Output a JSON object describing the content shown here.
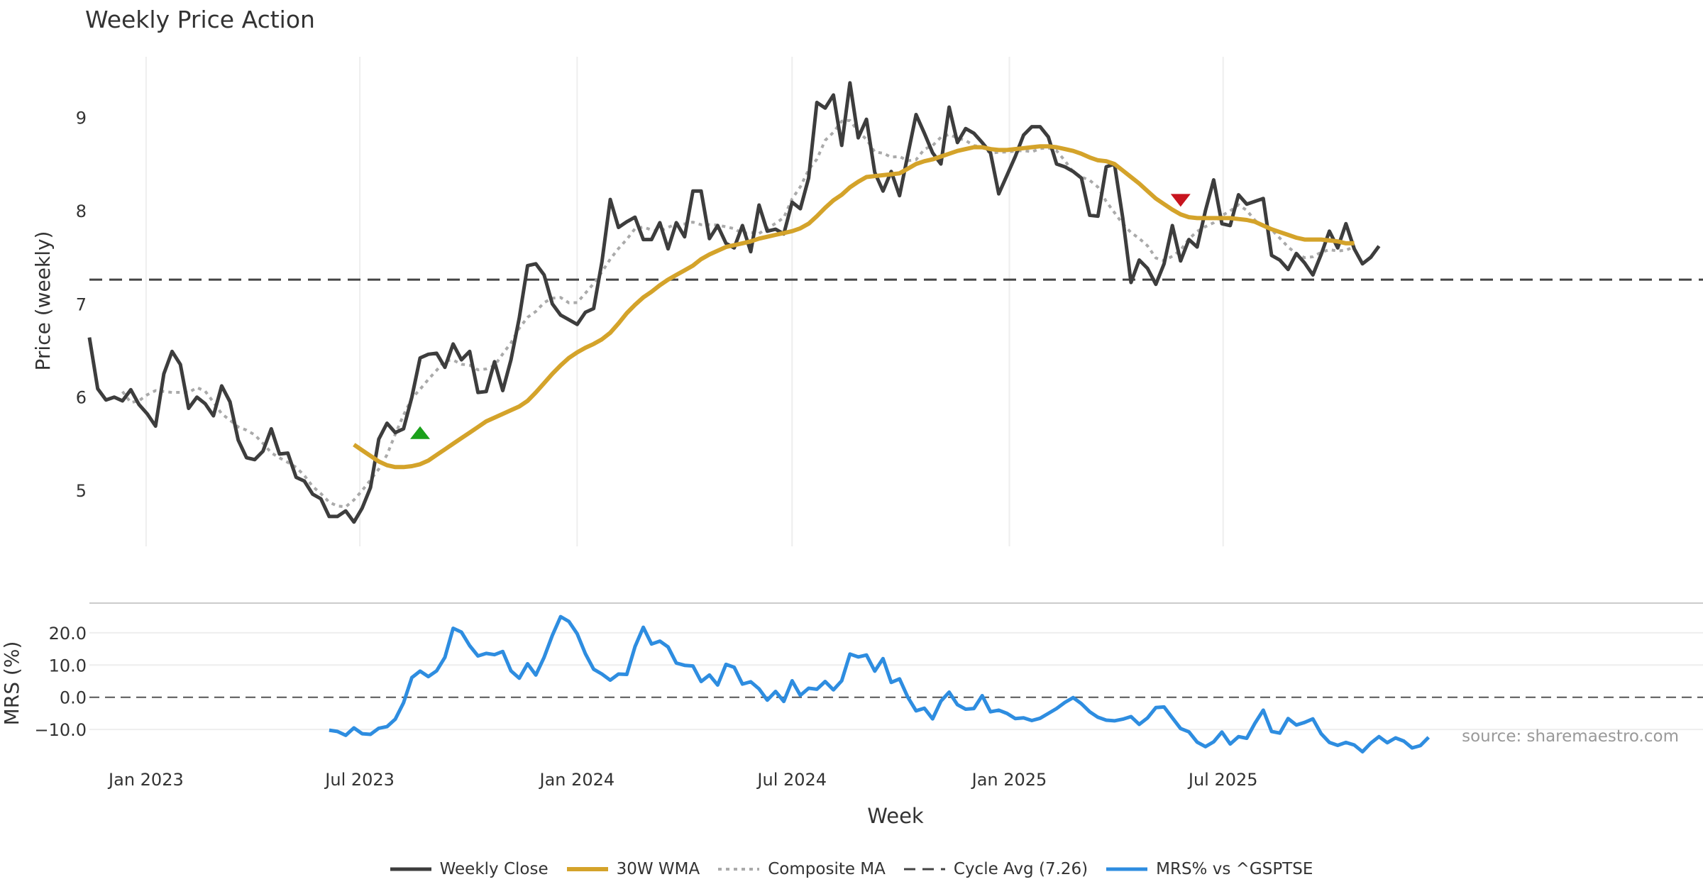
{
  "chart_data": {
    "type": "line",
    "title": "Weekly Price Action",
    "xlabel": "Week",
    "x_ticks": [
      "Jan 2023",
      "Jul 2023",
      "Jan 2024",
      "Jul 2024",
      "Jan 2025",
      "Jul 2025"
    ],
    "source": "source: sharemaestro.com",
    "colors": {
      "close": "#3d3d3d",
      "wma": "#d4a32a",
      "composite": "#aaaaaa",
      "cycle": "#444444",
      "mrs": "#2e8de0",
      "buy": "#1aa01a",
      "sell": "#c8141e"
    },
    "price_panel": {
      "ylabel": "Price (weekly)",
      "ylim": [
        4.4,
        9.65
      ],
      "yticks": [
        "5",
        "6",
        "7",
        "8",
        "9"
      ],
      "cycle_avg": 7.26,
      "start_date": "2022-11-14",
      "close": [
        6.64,
        6.09,
        5.97,
        6.0,
        5.96,
        6.08,
        5.92,
        5.82,
        5.69,
        6.25,
        6.49,
        6.35,
        5.88,
        6.0,
        5.93,
        5.8,
        6.12,
        5.95,
        5.54,
        5.35,
        5.33,
        5.42,
        5.66,
        5.39,
        5.4,
        5.14,
        5.1,
        4.96,
        4.91,
        4.72,
        4.72,
        4.78,
        4.66,
        4.81,
        5.03,
        5.55,
        5.72,
        5.62,
        5.66,
        6.0,
        6.42,
        6.46,
        6.47,
        6.32,
        6.57,
        6.4,
        6.49,
        6.05,
        6.06,
        6.38,
        6.07,
        6.4,
        6.85,
        7.41,
        7.43,
        7.31,
        7.0,
        6.88,
        6.83,
        6.78,
        6.91,
        6.95,
        7.45,
        8.12,
        7.82,
        7.88,
        7.93,
        7.69,
        7.69,
        7.87,
        7.59,
        7.87,
        7.72,
        8.21,
        8.21,
        7.7,
        7.84,
        7.65,
        7.6,
        7.84,
        7.56,
        8.06,
        7.78,
        7.8,
        7.75,
        8.09,
        8.02,
        8.35,
        9.16,
        9.1,
        9.24,
        8.7,
        9.37,
        8.78,
        8.98,
        8.41,
        8.21,
        8.42,
        8.16,
        8.6,
        9.03,
        8.83,
        8.62,
        8.5,
        9.11,
        8.73,
        8.88,
        8.83,
        8.73,
        8.62,
        8.18,
        8.38,
        8.58,
        8.81,
        8.9,
        8.9,
        8.79,
        8.5,
        8.47,
        8.42,
        8.35,
        7.95,
        7.94,
        8.47,
        8.5,
        7.92,
        7.23,
        7.47,
        7.38,
        7.21,
        7.43,
        7.84,
        7.46,
        7.69,
        7.61,
        8.0,
        8.33,
        7.86,
        7.84,
        8.17,
        8.07,
        8.1,
        8.13,
        7.52,
        7.47,
        7.37,
        7.54,
        7.44,
        7.31,
        7.53,
        7.78,
        7.6,
        7.86,
        7.59,
        7.43,
        7.5,
        7.62
      ],
      "wma_start": 32,
      "wma": [
        5.49,
        5.43,
        5.37,
        5.31,
        5.27,
        5.25,
        5.25,
        5.26,
        5.28,
        5.32,
        5.38,
        5.44,
        5.5,
        5.56,
        5.62,
        5.68,
        5.74,
        5.78,
        5.82,
        5.86,
        5.9,
        5.96,
        6.05,
        6.15,
        6.25,
        6.34,
        6.42,
        6.48,
        6.53,
        6.57,
        6.62,
        6.69,
        6.79,
        6.9,
        6.99,
        7.07,
        7.13,
        7.2,
        7.26,
        7.31,
        7.36,
        7.41,
        7.48,
        7.53,
        7.57,
        7.61,
        7.63,
        7.65,
        7.67,
        7.7,
        7.72,
        7.74,
        7.76,
        7.78,
        7.81,
        7.86,
        7.94,
        8.03,
        8.11,
        8.17,
        8.25,
        8.31,
        8.36,
        8.37,
        8.38,
        8.39,
        8.4,
        8.45,
        8.5,
        8.53,
        8.55,
        8.58,
        8.61,
        8.64,
        8.66,
        8.68,
        8.68,
        8.66,
        8.65,
        8.65,
        8.66,
        8.67,
        8.68,
        8.69,
        8.69,
        8.68,
        8.66,
        8.64,
        8.61,
        8.57,
        8.54,
        8.53,
        8.5,
        8.43,
        8.36,
        8.29,
        8.21,
        8.13,
        8.07,
        8.01,
        7.96,
        7.93,
        7.92,
        7.92,
        7.92,
        7.92,
        7.92,
        7.91,
        7.9,
        7.88,
        7.84,
        7.8,
        7.77,
        7.74,
        7.71,
        7.69,
        7.69,
        7.69,
        7.68,
        7.67,
        7.65,
        7.65
      ]
    },
    "mrs_panel": {
      "ylabel": "MRS (%)",
      "ylim": [
        -17,
        27
      ],
      "yticks": [
        "20.0",
        "10.0",
        "0.0",
        "−10.0"
      ],
      "start_index": 29,
      "values": [
        -10.2,
        -10.6,
        -11.8,
        -9.5,
        -11.3,
        -11.5,
        -9.6,
        -9.1,
        -6.8,
        -1.7,
        6.1,
        8.1,
        6.4,
        8.2,
        12.4,
        21.4,
        20.2,
        16.0,
        12.8,
        13.6,
        13.2,
        14.2,
        8.2,
        5.9,
        10.4,
        6.9,
        12.4,
        19.2,
        25.0,
        23.5,
        19.7,
        13.5,
        8.7,
        7.2,
        5.3,
        7.2,
        7.1,
        15.7,
        21.7,
        16.5,
        17.4,
        15.6,
        10.6,
        9.9,
        9.7,
        4.9,
        6.9,
        3.8,
        10.2,
        9.3,
        4.1,
        4.8,
        2.6,
        -0.9,
        1.8,
        -1.3,
        5.1,
        0.6,
        2.8,
        2.5,
        4.9,
        2.3,
        5.1,
        13.4,
        12.5,
        13.1,
        8.1,
        12.0,
        4.6,
        5.7,
        0.0,
        -4.2,
        -3.4,
        -6.7,
        -1.2,
        1.6,
        -2.3,
        -3.7,
        -3.5,
        0.5,
        -4.5,
        -4.0,
        -5.0,
        -6.6,
        -6.4,
        -7.2,
        -6.5,
        -5.0,
        -3.5,
        -1.6,
        -0.1,
        -2.0,
        -4.5,
        -6.2,
        -7.1,
        -7.3,
        -6.8,
        -6.0,
        -8.4,
        -6.4,
        -3.2,
        -3.0,
        -6.4,
        -9.7,
        -10.7,
        -13.9,
        -15.3,
        -13.8,
        -10.8,
        -14.5,
        -12.2,
        -12.7,
        -8.0,
        -4.0,
        -10.6,
        -11.1,
        -6.6,
        -8.6,
        -7.8,
        -6.7,
        -11.3,
        -14.0,
        -14.9,
        -14.0,
        -14.8,
        -16.9,
        -14.2,
        -12.2,
        -14.1,
        -12.6,
        -13.6,
        -15.7,
        -15.0,
        -12.4
      ]
    },
    "signals": [
      {
        "type": "buy",
        "x_index": 40,
        "price": 5.62
      },
      {
        "type": "sell",
        "x_index": 132,
        "price": 8.11
      }
    ],
    "legend": [
      {
        "key": "close",
        "label": "Weekly Close",
        "style": "solid"
      },
      {
        "key": "wma",
        "label": "30W WMA",
        "style": "solid"
      },
      {
        "key": "composite",
        "label": "Composite MA",
        "style": "dotted"
      },
      {
        "key": "cycle",
        "label": "Cycle Avg (7.26)",
        "style": "dashed"
      },
      {
        "key": "mrs",
        "label": "MRS% vs ^GSPTSE",
        "style": "solid"
      }
    ]
  }
}
